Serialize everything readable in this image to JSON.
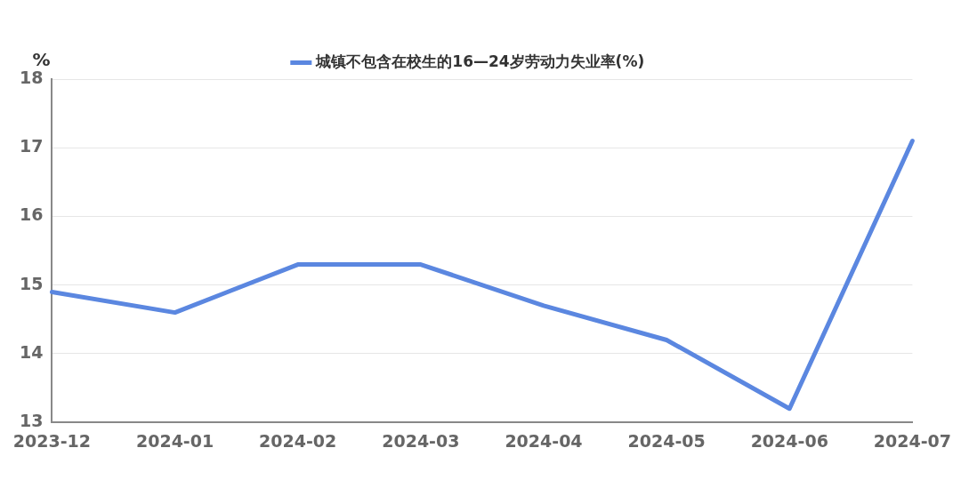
{
  "chart_data": {
    "type": "line",
    "ylabel": "%",
    "categories": [
      "2023-12",
      "2024-01",
      "2024-02",
      "2024-03",
      "2024-04",
      "2024-05",
      "2024-06",
      "2024-07"
    ],
    "series": [
      {
        "name": "城镇不包含在校生的16—24岁劳动力失业率(%)",
        "color": "#5b87e0",
        "values": [
          14.9,
          14.6,
          15.3,
          15.3,
          14.7,
          14.2,
          13.2,
          17.1
        ]
      }
    ],
    "ylim": [
      13,
      18
    ],
    "yticks": [
      13,
      14,
      15,
      16,
      17,
      18
    ],
    "grid": "y",
    "legend": "top",
    "marker": "none",
    "line_style": "solid"
  }
}
